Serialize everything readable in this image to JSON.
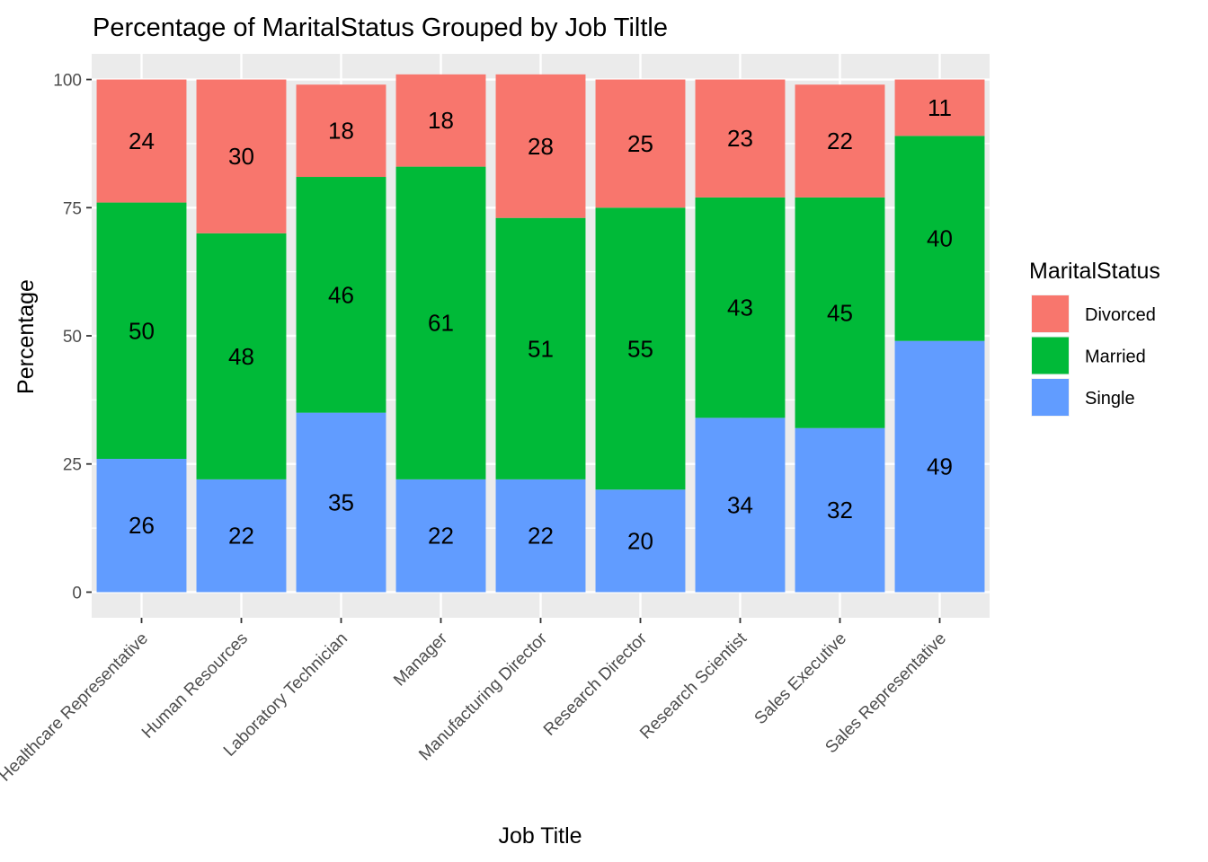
{
  "chart_data": {
    "type": "bar",
    "stacked": true,
    "title": "Percentage of MaritalStatus Grouped by Job Tiltle",
    "xlabel": "Job Title",
    "ylabel": "Percentage",
    "ylim": [
      -5,
      105
    ],
    "yticks": [
      0,
      25,
      50,
      75,
      100
    ],
    "grid": true,
    "legend_position": "right",
    "legend_title": "MaritalStatus",
    "categories": [
      "Healthcare Representative",
      "Human Resources",
      "Laboratory Technician",
      "Manager",
      "Manufacturing Director",
      "Research Director",
      "Research Scientist",
      "Sales Executive",
      "Sales Representative"
    ],
    "stack_order": [
      "Single",
      "Married",
      "Divorced"
    ],
    "series": [
      {
        "name": "Divorced",
        "color": "#F8766D",
        "values": [
          24,
          30,
          18,
          18,
          28,
          25,
          23,
          22,
          11
        ]
      },
      {
        "name": "Married",
        "color": "#00BA38",
        "values": [
          50,
          48,
          46,
          61,
          51,
          55,
          43,
          45,
          40
        ]
      },
      {
        "name": "Single",
        "color": "#619CFF",
        "values": [
          26,
          22,
          35,
          22,
          22,
          20,
          34,
          32,
          49
        ]
      }
    ]
  }
}
